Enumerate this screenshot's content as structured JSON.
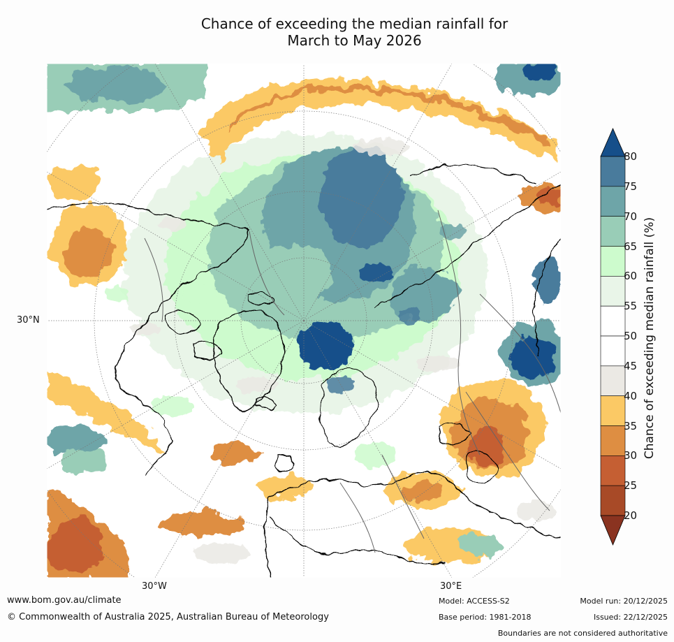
{
  "title": {
    "line1": "Chance of exceeding the median rainfall for",
    "line2": "March to May 2026"
  },
  "map": {
    "lat_label": "30°N",
    "lon_labels": [
      "30°W",
      "30°E"
    ]
  },
  "legend": {
    "label": "Chance of exceeding median rainfall (%)",
    "ticks": [
      "80",
      "75",
      "70",
      "65",
      "60",
      "55",
      "50",
      "45",
      "40",
      "35",
      "30",
      "25",
      "20"
    ],
    "bins": [
      {
        "range": "> 80",
        "color": "#164f8a"
      },
      {
        "range": "75-80",
        "color": "#497b9c"
      },
      {
        "range": "70-75",
        "color": "#6ea5a8"
      },
      {
        "range": "65-70",
        "color": "#99cdb7"
      },
      {
        "range": "60-65",
        "color": "#cdfbcd"
      },
      {
        "range": "55-60",
        "color": "#e9f5e8"
      },
      {
        "range": "50-55",
        "color": "#ffffff"
      },
      {
        "range": "45-50",
        "color": "#ffffff"
      },
      {
        "range": "40-45",
        "color": "#ebe9e4"
      },
      {
        "range": "35-40",
        "color": "#fbc965"
      },
      {
        "range": "30-35",
        "color": "#de8e42"
      },
      {
        "range": "25-30",
        "color": "#c55f33"
      },
      {
        "range": "20-25",
        "color": "#a84a27"
      },
      {
        "range": "< 20",
        "color": "#8a3320"
      }
    ]
  },
  "footer": {
    "website": "www.bom.gov.au/climate",
    "copyright": "© Commonwealth of Australia 2025, Australian Bureau of Meteorology",
    "model": "Model: ACCESS-S2",
    "base_period": "Base period: 1981-2018",
    "model_run": "Model run: 20/12/2025",
    "issued": "Issued: 22/12/2025",
    "disclaimer": "Boundaries are not considered authoritative"
  }
}
